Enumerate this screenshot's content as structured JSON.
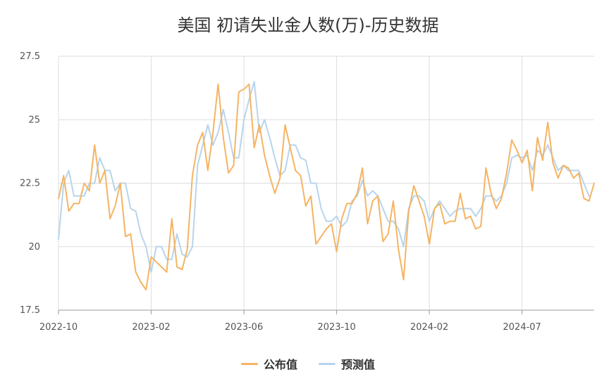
{
  "chart_data": {
    "type": "line",
    "title": "美国 初请失业金人数(万)-历史数据",
    "xlabel": "",
    "ylabel": "",
    "ylim": [
      17.5,
      27.5
    ],
    "yticks": [
      17.5,
      20,
      22.5,
      25,
      27.5
    ],
    "ytick_labels": [
      "17.5",
      "20",
      "22.5",
      "25",
      "27.5"
    ],
    "xtick_labels": [
      "2022-10",
      "2023-02",
      "2023-06",
      "2023-10",
      "2024-02",
      "2024-07"
    ],
    "xtick_index": [
      0,
      18,
      36,
      54,
      72,
      90
    ],
    "grid": true,
    "legend_position": "bottom",
    "series": [
      {
        "name": "公布值",
        "color": "#f5b463",
        "values": [
          21.9,
          22.8,
          21.4,
          21.7,
          21.7,
          22.5,
          22.2,
          24.0,
          22.5,
          23.0,
          21.1,
          21.6,
          22.5,
          20.4,
          20.5,
          19.0,
          18.6,
          18.3,
          19.6,
          19.4,
          19.2,
          19.0,
          21.1,
          19.2,
          19.1,
          19.9,
          22.8,
          24.0,
          24.5,
          23.0,
          24.5,
          26.4,
          24.3,
          22.9,
          23.2,
          26.1,
          26.2,
          26.4,
          23.9,
          24.8,
          23.6,
          22.8,
          22.1,
          22.7,
          24.8,
          23.9,
          23.0,
          22.8,
          21.6,
          22.0,
          20.1,
          20.4,
          20.7,
          20.9,
          19.8,
          21.1,
          21.7,
          21.7,
          22.1,
          23.1,
          20.9,
          21.8,
          22.0,
          20.2,
          20.5,
          21.8,
          19.9,
          18.7,
          21.4,
          22.4,
          21.8,
          21.2,
          20.1,
          21.5,
          21.7,
          20.9,
          21.0,
          21.0,
          22.1,
          21.1,
          21.2,
          20.7,
          20.8,
          23.1,
          22.1,
          21.5,
          21.9,
          22.9,
          24.2,
          23.8,
          23.3,
          23.8,
          22.2,
          24.3,
          23.4,
          24.9,
          23.3,
          22.7,
          23.2,
          23.1,
          22.7,
          22.9,
          21.9,
          21.8,
          22.5
        ]
      },
      {
        "name": "预测值",
        "color": "#b8d4ec",
        "values": [
          20.3,
          22.5,
          23.0,
          22.0,
          22.0,
          22.0,
          22.5,
          22.5,
          23.5,
          23.0,
          23.0,
          22.2,
          22.5,
          22.5,
          21.5,
          21.4,
          20.5,
          20.0,
          19.0,
          20.0,
          20.0,
          19.5,
          19.5,
          20.5,
          19.7,
          19.6,
          20.0,
          23.2,
          24.0,
          24.8,
          24.0,
          24.5,
          25.4,
          24.5,
          23.5,
          23.5,
          25.0,
          25.8,
          26.5,
          24.5,
          25.0,
          24.3,
          23.5,
          22.8,
          23.0,
          24.0,
          24.0,
          23.5,
          23.4,
          22.5,
          22.5,
          21.5,
          21.0,
          21.0,
          21.2,
          20.8,
          21.0,
          21.8,
          22.0,
          22.6,
          22.0,
          22.2,
          22.0,
          21.5,
          21.0,
          21.0,
          20.7,
          20.0,
          21.5,
          22.0,
          22.0,
          21.8,
          21.0,
          21.5,
          21.8,
          21.5,
          21.2,
          21.4,
          21.5,
          21.5,
          21.5,
          21.2,
          21.5,
          22.0,
          22.0,
          21.8,
          22.0,
          22.5,
          23.5,
          23.6,
          23.5,
          23.6,
          23.0,
          23.8,
          23.6,
          24.0,
          23.5,
          23.0,
          23.2,
          23.0,
          23.0,
          23.0,
          22.5,
          22.0
        ]
      }
    ]
  }
}
